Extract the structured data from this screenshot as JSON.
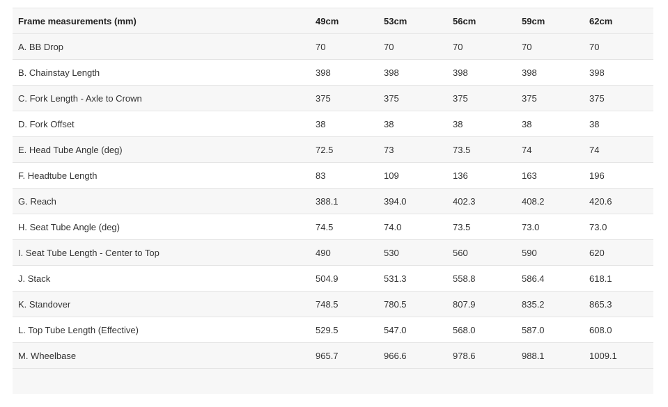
{
  "table": {
    "headers": [
      "Frame measurements (mm)",
      "49cm",
      "53cm",
      "56cm",
      "59cm",
      "62cm"
    ],
    "rows": [
      [
        "A. BB Drop",
        "70",
        "70",
        "70",
        "70",
        "70"
      ],
      [
        "B. Chainstay Length",
        "398",
        "398",
        "398",
        "398",
        "398"
      ],
      [
        "C. Fork Length - Axle to Crown",
        "375",
        "375",
        "375",
        "375",
        "375"
      ],
      [
        "D. Fork Offset",
        "38",
        "38",
        "38",
        "38",
        "38"
      ],
      [
        "E. Head Tube Angle (deg)",
        "72.5",
        "73",
        "73.5",
        "74",
        "74"
      ],
      [
        "F. Headtube Length",
        "83",
        "109",
        "136",
        "163",
        "196"
      ],
      [
        "G. Reach",
        "388.1",
        "394.0",
        "402.3",
        "408.2",
        "420.6"
      ],
      [
        "H. Seat Tube Angle (deg)",
        "74.5",
        "74.0",
        "73.5",
        "73.0",
        "73.0"
      ],
      [
        "I. Seat Tube Length - Center to Top",
        "490",
        "530",
        "560",
        "590",
        "620"
      ],
      [
        "J. Stack",
        "504.9",
        "531.3",
        "558.8",
        "586.4",
        "618.1"
      ],
      [
        "K. Standover",
        "748.5",
        "780.5",
        "807.9",
        "835.2",
        "865.3"
      ],
      [
        "L. Top Tube Length (Effective)",
        "529.5",
        "547.0",
        "568.0",
        "587.0",
        "608.0"
      ],
      [
        "M. Wheelbase",
        "965.7",
        "966.6",
        "978.6",
        "988.1",
        "1009.1"
      ]
    ]
  }
}
